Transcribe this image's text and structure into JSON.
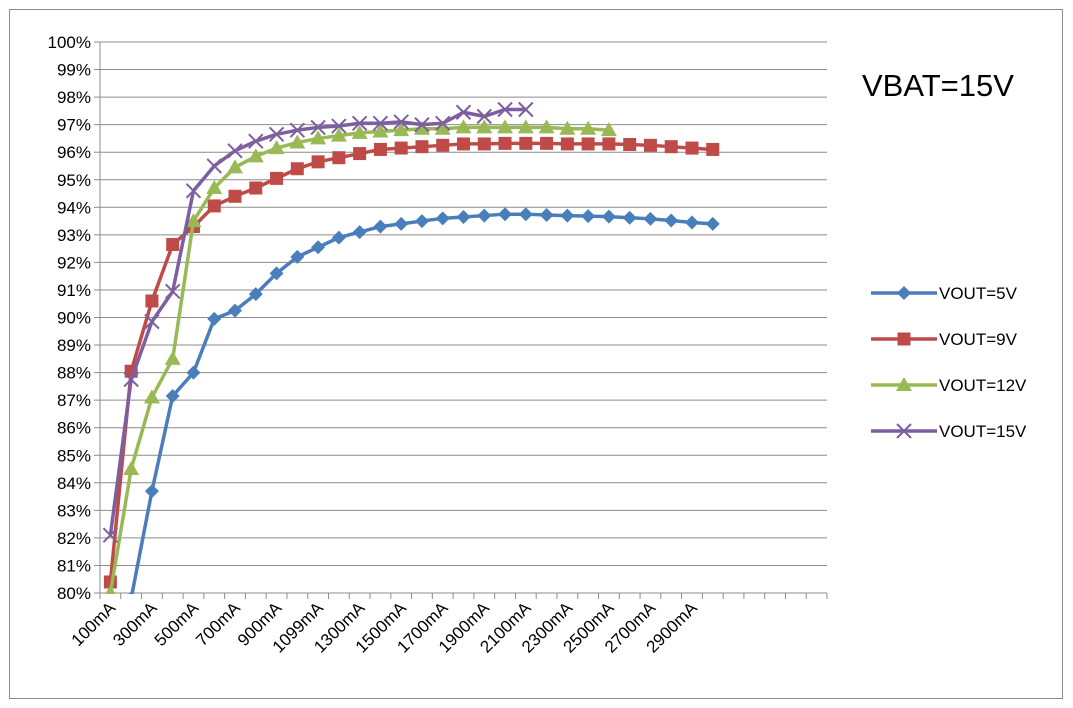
{
  "chart_data": {
    "type": "line",
    "title": "VBAT=15V",
    "xlabel": "",
    "ylabel": "",
    "x_count": 35,
    "x_tick_labels": [
      "100mA",
      "300mA",
      "500mA",
      "700mA",
      "900mA",
      "1099mA",
      "1300mA",
      "1500mA",
      "1700mA",
      "1900mA",
      "2100mA",
      "2300mA",
      "2500mA",
      "2700mA",
      "2900mA"
    ],
    "y_tick_labels": [
      "80%",
      "81%",
      "82%",
      "83%",
      "84%",
      "85%",
      "86%",
      "87%",
      "88%",
      "89%",
      "90%",
      "91%",
      "92%",
      "93%",
      "94%",
      "95%",
      "96%",
      "97%",
      "98%",
      "99%",
      "100%"
    ],
    "ylim": [
      80,
      100
    ],
    "grid": true,
    "legend_position": "right",
    "series": [
      {
        "name": "VOUT=5V",
        "color": "#4a7ebb",
        "marker": "diamond",
        "values": [
          78.0,
          79.8,
          83.7,
          87.15,
          88.0,
          89.95,
          90.25,
          90.85,
          91.6,
          92.2,
          92.55,
          92.9,
          93.1,
          93.3,
          93.4,
          93.5,
          93.6,
          93.65,
          93.7,
          93.75,
          93.75,
          93.72,
          93.7,
          93.68,
          93.66,
          93.62,
          93.58,
          93.52,
          93.45,
          93.4
        ]
      },
      {
        "name": "VOUT=9V",
        "color": "#be4b48",
        "marker": "square",
        "values": [
          80.4,
          88.05,
          90.6,
          92.65,
          93.3,
          94.05,
          94.4,
          94.7,
          95.05,
          95.4,
          95.65,
          95.8,
          95.95,
          96.1,
          96.15,
          96.2,
          96.25,
          96.3,
          96.3,
          96.32,
          96.32,
          96.32,
          96.3,
          96.3,
          96.3,
          96.28,
          96.25,
          96.2,
          96.15,
          96.1
        ]
      },
      {
        "name": "VOUT=12V",
        "color": "#98b954",
        "marker": "triangle",
        "values": [
          80.0,
          84.5,
          87.1,
          88.5,
          93.5,
          94.7,
          95.45,
          95.85,
          96.15,
          96.35,
          96.5,
          96.6,
          96.7,
          96.75,
          96.8,
          96.85,
          96.85,
          96.9,
          96.9,
          96.9,
          96.9,
          96.9,
          96.85,
          96.85,
          96.8
        ]
      },
      {
        "name": "VOUT=15V",
        "color": "#7d5fa0",
        "marker": "x",
        "values": [
          82.1,
          87.75,
          89.85,
          90.95,
          94.6,
          95.5,
          96.05,
          96.4,
          96.65,
          96.8,
          96.9,
          96.95,
          97.05,
          97.05,
          97.1,
          97.0,
          97.05,
          97.45,
          97.3,
          97.55,
          97.55
        ]
      }
    ]
  }
}
